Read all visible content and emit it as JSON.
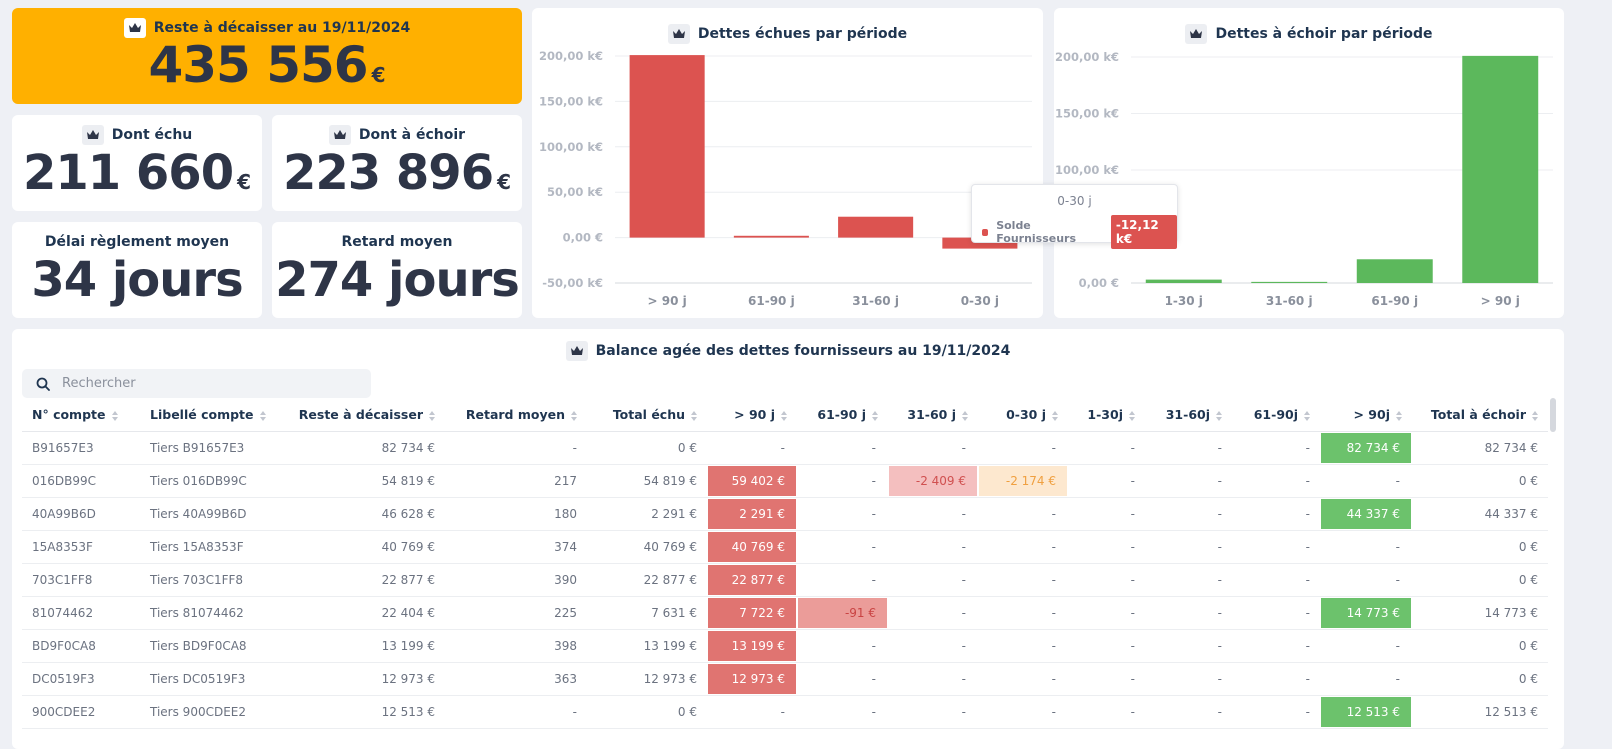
{
  "kpis": [
    {
      "title": "Reste à décaisser au 19/11/2024",
      "value": "435 556",
      "unit": "€"
    },
    {
      "title": "Dont échu",
      "value": "211 660",
      "unit": "€"
    },
    {
      "title": "Dont à échoir",
      "value": "223 896",
      "unit": "€"
    },
    {
      "title": "Délai règlement moyen",
      "value": "34 jours"
    },
    {
      "title": "Retard moyen",
      "value": "274 jours"
    }
  ],
  "chart_data": [
    {
      "type": "bar",
      "title": "Dettes échues par période",
      "categories": [
        "> 90 j",
        "61-90 j",
        "31-60 j",
        "0-30 j"
      ],
      "series": [
        {
          "name": "Solde Fournisseurs",
          "color": "#dc5350",
          "values": [
            201,
            2,
            23,
            -12.12
          ]
        }
      ],
      "ylim": [
        -50,
        200
      ],
      "yticks": [
        {
          "value": -50,
          "label": "-50,00 k€"
        },
        {
          "value": 0,
          "label": "0,00 €"
        },
        {
          "value": 50,
          "label": "50,00 k€"
        },
        {
          "value": 100,
          "label": "100,00 k€"
        },
        {
          "value": 150,
          "label": "150,00 k€"
        },
        {
          "value": 200,
          "label": "200,00 k€"
        }
      ],
      "grid": true,
      "tooltip": {
        "category": "0-30 j",
        "label": "-12,12 k€"
      }
    },
    {
      "type": "bar",
      "title": "Dettes à échoir par période",
      "categories": [
        "1-30 j",
        "31-60 j",
        "61-90 j",
        "> 90 j"
      ],
      "values": [
        3,
        1,
        21,
        201
      ],
      "color": "#5cb85c",
      "ylim": [
        0,
        200
      ],
      "yticks": [
        {
          "value": 0,
          "label": "0,00 €"
        },
        {
          "value": 100,
          "label": "100,00 k€"
        },
        {
          "value": 150,
          "label": "150,00 k€"
        },
        {
          "value": 200,
          "label": "200,00 k€"
        }
      ],
      "grid": true
    }
  ],
  "table": {
    "title": "Balance agée des dettes fournisseurs au 19/11/2024",
    "search_placeholder": "Rechercher",
    "columns": [
      "N° compte",
      "Libellé compte",
      "Reste à décaisser",
      "Retard moyen",
      "Total échu",
      "> 90 j",
      "61-90 j",
      "31-60 j",
      "0-30 j",
      "1-30j",
      "31-60j",
      "61-90j",
      "> 90j",
      "Total à échoir"
    ],
    "rows": [
      [
        "B91657E3",
        "Tiers B91657E3",
        "82 734 €",
        "-",
        "0 €",
        "-",
        "-",
        "-",
        "-",
        "-",
        "-",
        "-",
        "82 734 €",
        "82 734 €"
      ],
      [
        "016DB99C",
        "Tiers 016DB99C",
        "54 819 €",
        "217",
        "54 819 €",
        "59 402 €",
        "-",
        "-2 409 €",
        "-2 174 €",
        "-",
        "-",
        "-",
        "-",
        "0 €"
      ],
      [
        "40A99B6D",
        "Tiers 40A99B6D",
        "46 628 €",
        "180",
        "2 291 €",
        "2 291 €",
        "-",
        "-",
        "-",
        "-",
        "-",
        "-",
        "44 337 €",
        "44 337 €"
      ],
      [
        "15A8353F",
        "Tiers 15A8353F",
        "40 769 €",
        "374",
        "40 769 €",
        "40 769 €",
        "-",
        "-",
        "-",
        "-",
        "-",
        "-",
        "-",
        "0 €"
      ],
      [
        "703C1FF8",
        "Tiers 703C1FF8",
        "22 877 €",
        "390",
        "22 877 €",
        "22 877 €",
        "-",
        "-",
        "-",
        "-",
        "-",
        "-",
        "-",
        "0 €"
      ],
      [
        "81074462",
        "Tiers 81074462",
        "22 404 €",
        "225",
        "7 631 €",
        "7 722 €",
        "-91 €",
        "-",
        "-",
        "-",
        "-",
        "-",
        "14 773 €",
        "14 773 €"
      ],
      [
        "BD9F0CA8",
        "Tiers BD9F0CA8",
        "13 199 €",
        "398",
        "13 199 €",
        "13 199 €",
        "-",
        "-",
        "-",
        "-",
        "-",
        "-",
        "-",
        "0 €"
      ],
      [
        "DC0519F3",
        "Tiers DC0519F3",
        "12 973 €",
        "363",
        "12 973 €",
        "12 973 €",
        "-",
        "-",
        "-",
        "-",
        "-",
        "-",
        "-",
        "0 €"
      ],
      [
        "900CDEE2",
        "Tiers 900CDEE2",
        "12 513 €",
        "-",
        "0 €",
        "-",
        "-",
        "-",
        "-",
        "-",
        "-",
        "-",
        "12 513 €",
        "12 513 €"
      ]
    ]
  }
}
